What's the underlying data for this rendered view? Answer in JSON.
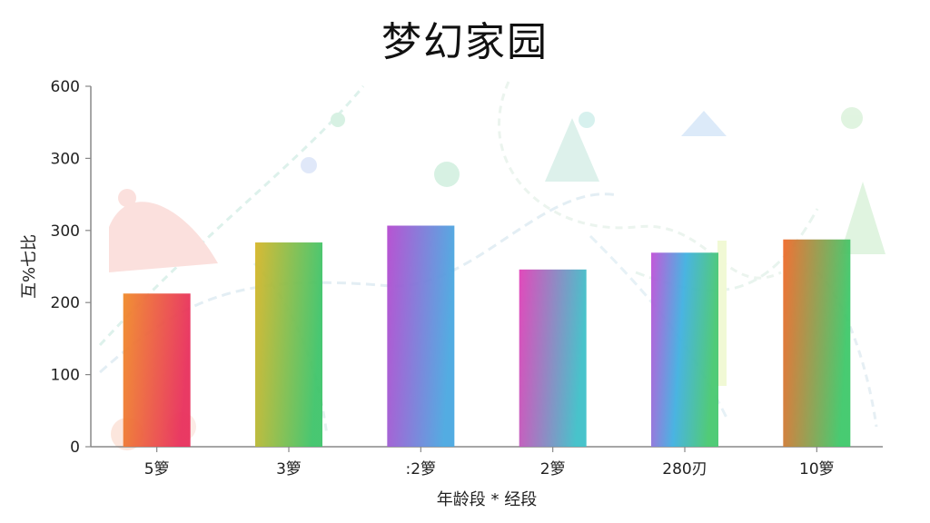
{
  "chart_data": {
    "type": "bar",
    "title": "梦幻家园",
    "xlabel": "年龄段 * 经段",
    "ylabel": "互%七比",
    "y_tick_labels": [
      "0",
      "100",
      "200",
      "300",
      "300",
      "600"
    ],
    "categories": [
      "5箩",
      "3箩",
      ":2箩",
      "2箩",
      "280刃",
      "10箩"
    ],
    "values": [
      255,
      340,
      368,
      295,
      323,
      345
    ],
    "ylim": [
      0,
      600
    ],
    "grid": false,
    "bar_gradients": [
      [
        "#f08a2a",
        "#e8305c"
      ],
      [
        "#d6b62a",
        "#3fc46a"
      ],
      [
        "#b44ad0",
        "#4aa8e0"
      ],
      [
        "#e040b8",
        "#3ec0c8"
      ],
      [
        "#c050d8",
        "#40b0e0",
        "#48c870"
      ],
      [
        "#f06a2a",
        "#3ec86a"
      ]
    ],
    "colors": {
      "axis": "#888888",
      "text": "#222222"
    }
  }
}
